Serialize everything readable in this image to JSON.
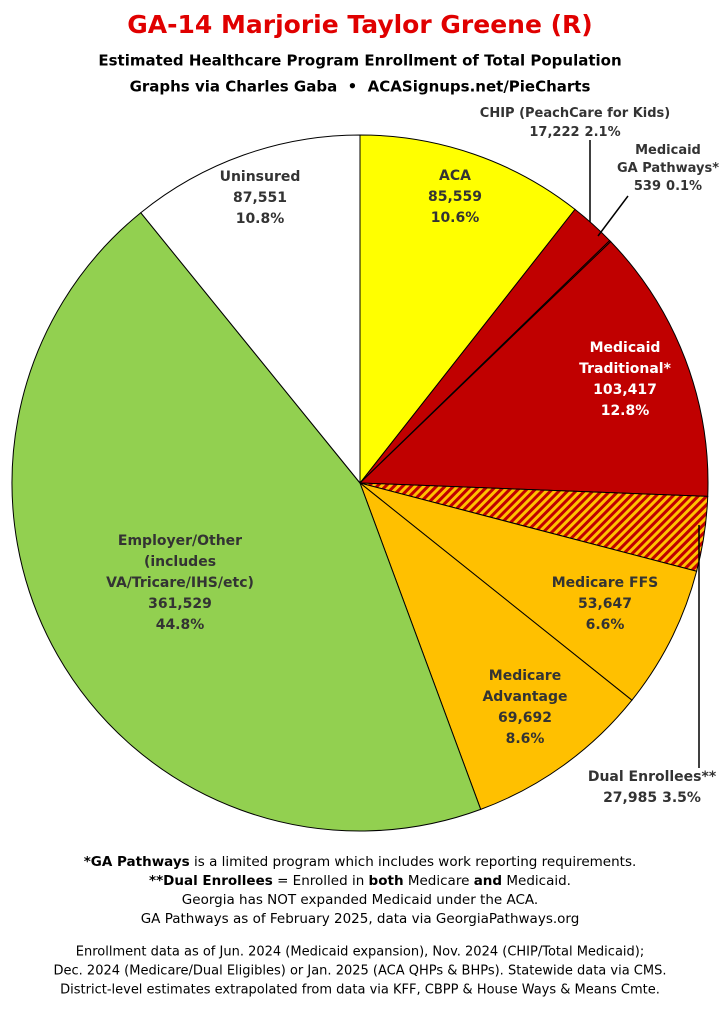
{
  "chart_data": {
    "type": "pie",
    "title": "GA-14 Marjorie Taylor Greene (R)",
    "subtitle": "Estimated Healthcare Program Enrollment of Total Population",
    "credit": "Graphs via Charles Gaba  •  ACASignups.net/PieCharts",
    "categories": [
      "ACA",
      "CHIP (PeachCare for Kids)",
      "Medicaid\nGA Pathways*",
      "Medicaid\nTraditional*",
      "Dual Enrollees**",
      "Medicare FFS",
      "Medicare\nAdvantage",
      "Employer/Other\n(includes\nVA/Tricare/IHS/etc)",
      "Uninsured"
    ],
    "values": [
      85559,
      17222,
      539,
      103417,
      27985,
      53647,
      69692,
      361529,
      87551
    ],
    "value_labels": [
      "85,559",
      "17,222",
      "539",
      "103,417",
      "27,985",
      "53,647",
      "69,692",
      "361,529",
      "87,551"
    ],
    "percent_labels": [
      "10.6%",
      "2.1%",
      "0.1%",
      "12.8%",
      "3.5%",
      "6.6%",
      "8.6%",
      "44.8%",
      "10.8%"
    ],
    "colors": [
      "#ffff00",
      "#c00000",
      "#c00000",
      "#c00000",
      "hatch",
      "#ffc000",
      "#ffc000",
      "#92d050",
      "#ffffff"
    ],
    "notes": [
      [
        {
          "text": "*GA Pathways",
          "bold": true
        },
        {
          "text": " is a limited program which includes work reporting requirements."
        }
      ],
      [
        {
          "text": "**Dual Enrollees",
          "bold": true
        },
        {
          "text": " = Enrolled in "
        },
        {
          "text": "both",
          "bold": true
        },
        {
          "text": " Medicare "
        },
        {
          "text": "and",
          "bold": true
        },
        {
          "text": " Medicaid."
        }
      ],
      [
        {
          "text": "Georgia has NOT expanded Medicaid under the ACA."
        }
      ],
      [
        {
          "text": "GA Pathways as of February 2025, data via GeorgiaPathways.org"
        }
      ]
    ],
    "footer": [
      "Enrollment data as of Jun. 2024 (Medicaid expansion), Nov. 2024 (CHIP/Total Medicaid);",
      "Dec. 2024 (Medicare/Dual Eligibles) or Jan. 2025 (ACA QHPs & BHPs). Statewide data via CMS.",
      "District-level estimates extrapolated from data via KFF, CBPP & House Ways & Means Cmte."
    ]
  }
}
